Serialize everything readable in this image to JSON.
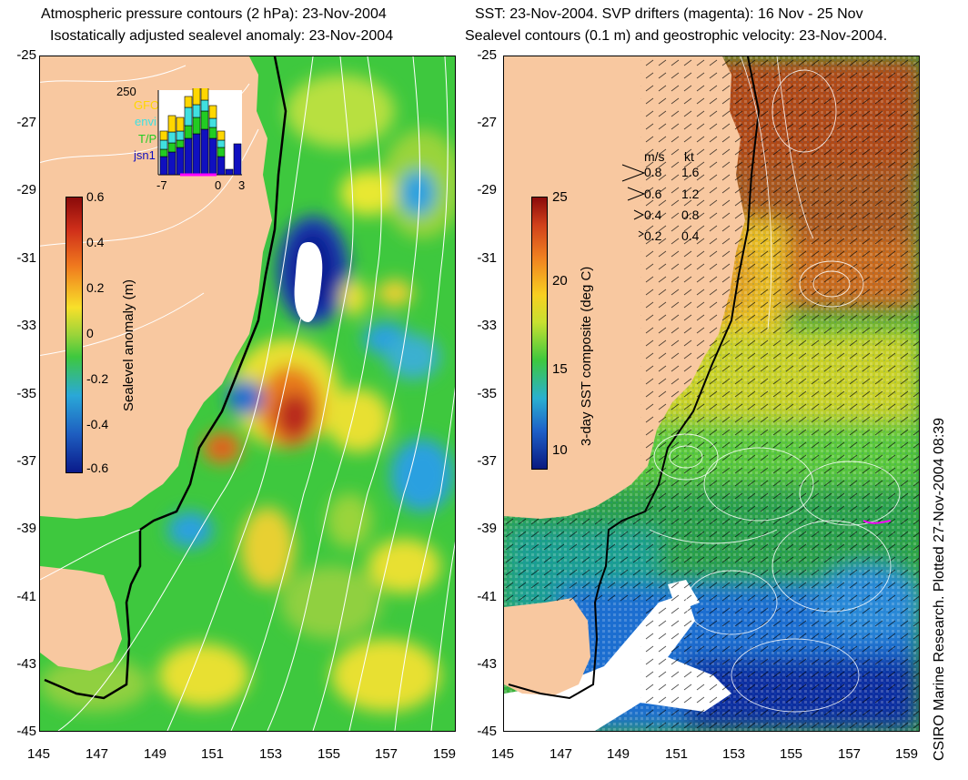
{
  "titles": {
    "left_line1": "Atmospheric pressure contours (2 hPa): 23-Nov-2004",
    "left_line2": "Isostatically adjusted sealevel anomaly: 23-Nov-2004",
    "right_line1": "SST: 23-Nov-2004. SVP drifters (magenta): 16 Nov - 25 Nov",
    "right_line2": "Sealevel contours (0.1 m) and geostrophic velocity: 23-Nov-2004."
  },
  "axes": {
    "lat_labels": [
      "-25",
      "-27",
      "-29",
      "-31",
      "-33",
      "-35",
      "-37",
      "-39",
      "-41",
      "-43",
      "-45"
    ],
    "lon_labels": [
      "145",
      "147",
      "149",
      "151",
      "153",
      "155",
      "157",
      "159"
    ]
  },
  "left_colorbar": {
    "label": "Sealevel anomaly (m)",
    "ticks": [
      "0.6",
      "0.4",
      "0.2",
      "0",
      "-0.2",
      "-0.4",
      "-0.6"
    ]
  },
  "right_colorbar": {
    "label": "3-day SST composite (deg C)",
    "ticks": [
      "25",
      "20",
      "15",
      "10"
    ]
  },
  "inset": {
    "max_label": "250",
    "legend": [
      {
        "name": "GFO",
        "color": "#ffd700"
      },
      {
        "name": "envi",
        "color": "#40e0e0"
      },
      {
        "name": "T/P",
        "color": "#22cc22"
      },
      {
        "name": "jsn1",
        "color": "#1010c0"
      }
    ],
    "x_labels": [
      "-7",
      "0",
      "3"
    ]
  },
  "velocity_legend": {
    "header_ms": "m/s",
    "header_kt": "kt",
    "rows": [
      {
        "ms": "0.8",
        "kt": "1.6"
      },
      {
        "ms": "0.6",
        "kt": "1.2"
      },
      {
        "ms": "0.4",
        "kt": "0.8"
      },
      {
        "ms": "0.2",
        "kt": "0.4"
      }
    ]
  },
  "credit": "CSIRO Marine Research. Plotted 27-Nov-2004 08:39",
  "colors": {
    "land": "#f8c8a0",
    "ocean_green": "#3ec83e",
    "ocean_blue": "#1e6ed0",
    "warm_orange": "#e0701e",
    "contour": "#ffffff"
  }
}
